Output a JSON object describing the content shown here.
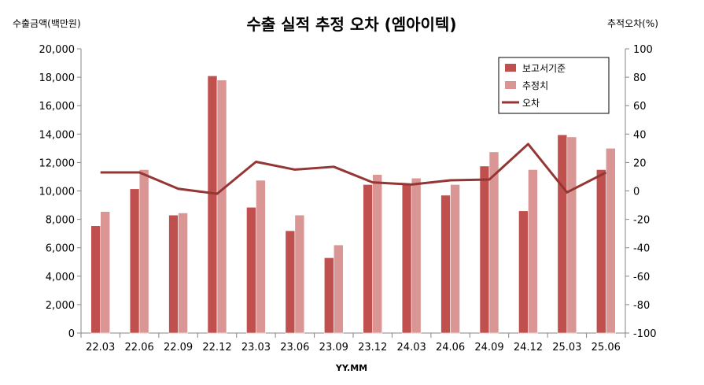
{
  "chart_data": {
    "type": "bar",
    "title": "수출 실적 추정 오차 (엠아이텍)",
    "ylabel": "수출금액(백만원)",
    "y2label": "추적오차(%)",
    "xlabel": "YY.MM",
    "categories": [
      "22.03",
      "22.06",
      "22.09",
      "22.12",
      "23.03",
      "23.06",
      "23.09",
      "23.12",
      "24.03",
      "24.06",
      "24.09",
      "24.12",
      "25.03",
      "25.06"
    ],
    "ylim": [
      0,
      20000
    ],
    "y2lim": [
      -100,
      100
    ],
    "yticks": [
      "0",
      "2,000",
      "4,000",
      "6,000",
      "8,000",
      "10,000",
      "12,000",
      "14,000",
      "16,000",
      "18,000",
      "20,000"
    ],
    "y2ticks": [
      "-100",
      "-80",
      "-60",
      "-40",
      "-20",
      "0",
      "20",
      "40",
      "60",
      "80",
      "100"
    ],
    "series": [
      {
        "name": "보고서기준",
        "type": "bar",
        "color": "#c0504d",
        "values": [
          7550,
          10150,
          8300,
          18100,
          8850,
          7200,
          5300,
          10450,
          10450,
          9700,
          11750,
          8600,
          13950,
          11500
        ]
      },
      {
        "name": "추정치",
        "type": "bar",
        "color": "#d99694",
        "values": [
          8550,
          11500,
          8450,
          17800,
          10750,
          8300,
          6200,
          11150,
          10900,
          10450,
          12750,
          11500,
          13800,
          13000
        ]
      },
      {
        "name": "오차",
        "type": "line",
        "axis": "secondary",
        "color": "#943634",
        "values": [
          13,
          13,
          1.5,
          -2,
          20.5,
          15,
          17,
          6,
          4.5,
          7.5,
          8,
          33,
          -1,
          13
        ]
      }
    ],
    "legend_position": "top-right",
    "grid": false
  }
}
